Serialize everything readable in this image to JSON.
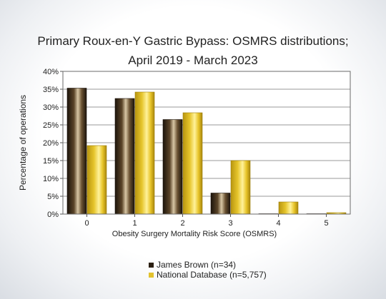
{
  "chart_data": {
    "type": "bar",
    "title": "Primary Roux-en-Y Gastric Bypass: OSMRS distributions;",
    "subtitle": "April 2019 - March 2023",
    "xlabel": "Obesity Surgery Mortality Risk Score (OSMRS)",
    "ylabel": "Percentage of operations",
    "categories": [
      "0",
      "1",
      "2",
      "3",
      "4",
      "5"
    ],
    "ylim": [
      0,
      40
    ],
    "yticks": [
      "0%",
      "5%",
      "10%",
      "15%",
      "20%",
      "25%",
      "30%",
      "35%",
      "40%"
    ],
    "grid": true,
    "legend_position": "bottom",
    "series": [
      {
        "name": "James Brown (n=34)",
        "color": "#3a2a18",
        "values": [
          35.3,
          32.4,
          26.5,
          5.9,
          0.1,
          0.1
        ]
      },
      {
        "name": "National Database (n=5,757)",
        "color": "#e2c22e",
        "values": [
          19.2,
          34.2,
          28.4,
          15.0,
          3.4,
          0.4
        ]
      }
    ]
  }
}
